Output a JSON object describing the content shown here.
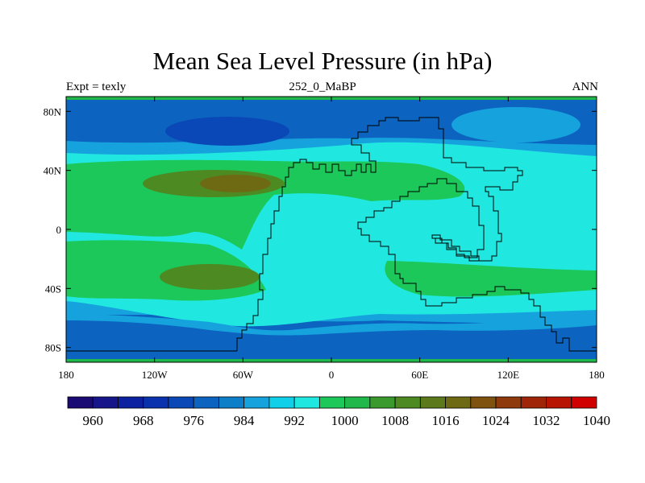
{
  "title": "Mean Sea Level Pressure (in hPa)",
  "subtitle_left": "Expt = texly",
  "subtitle_center": "252_0_MaBP",
  "subtitle_right": "ANN",
  "map": {
    "lon_range": [
      -180,
      180
    ],
    "lat_range": [
      -90,
      90
    ],
    "lon_tick_values": [
      -180,
      -120,
      -60,
      0,
      60,
      120,
      180
    ],
    "lon_tick_labels": [
      "180",
      "120W",
      "60W",
      "0",
      "60E",
      "120E",
      "180"
    ],
    "lat_tick_values": [
      80,
      40,
      0,
      -40,
      -80
    ],
    "lat_tick_labels": [
      "80N",
      "40N",
      "0",
      "40S",
      "80S"
    ]
  },
  "colorbar": {
    "levels": [
      960,
      964,
      968,
      972,
      976,
      980,
      984,
      988,
      992,
      996,
      1000,
      1004,
      1008,
      1012,
      1016,
      1020,
      1024,
      1028,
      1032,
      1036,
      1040
    ],
    "labels": [
      "960",
      "968",
      "976",
      "984",
      "992",
      "1000",
      "1008",
      "1016",
      "1024",
      "1032",
      "1040"
    ],
    "colors": [
      "#1a0a73",
      "#16158a",
      "#0c22a0",
      "#0a32ae",
      "#0a48b8",
      "#0c64c0",
      "#0d7ec8",
      "#16a3dd",
      "#0fd0e8",
      "#20e8e0",
      "#1cc85a",
      "#20b84a",
      "#3a9a2e",
      "#4d8a22",
      "#5c7a1c",
      "#6e6a14",
      "#7f5210",
      "#8e3a0c",
      "#a02408",
      "#b81404",
      "#d00000"
    ]
  },
  "field_colors": {
    "ocean_deep": "#0a48b8",
    "ocean_low": "#0c64c0",
    "ocean_mid": "#16a3dd",
    "ocean_base": "#20e8e0",
    "high_green": "#1cc85a",
    "high_olive": "#4d8a22",
    "high_brown": "#6e6a14",
    "polar_edge": "#20b84a"
  }
}
